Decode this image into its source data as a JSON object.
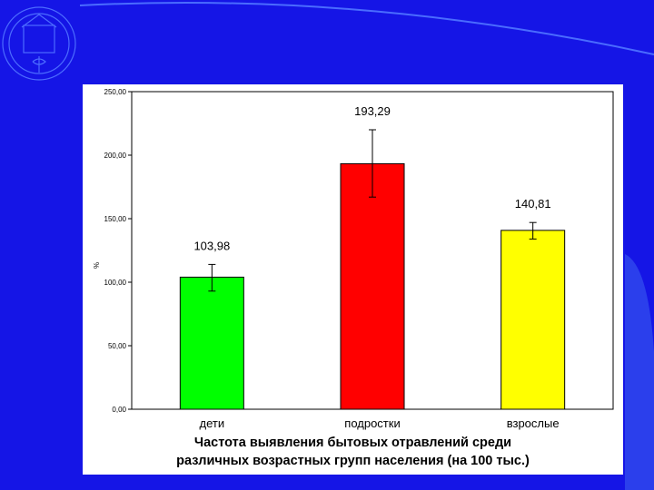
{
  "colors": {
    "slide_background": "#1515e6",
    "panel": "#ffffff",
    "grid": "#000000"
  },
  "logo": {
    "name": "university-emblem-watermark"
  },
  "chart_data": {
    "type": "bar",
    "title_lines": [
      "Частота выявления бытовых отравлений среди",
      "различных возрастных групп населения (на 100 тыс.)"
    ],
    "ylabel": "%",
    "ylim": [
      0,
      250
    ],
    "yticks": [
      0,
      50,
      100,
      150,
      200,
      250
    ],
    "ytick_labels": [
      "0,00",
      "50,00",
      "100,00",
      "150,00",
      "200,00",
      "250,00"
    ],
    "categories": [
      "дети",
      "подростки",
      "взрослые"
    ],
    "values": [
      103.98,
      193.29,
      140.81
    ],
    "value_labels": [
      "103,98",
      "193,29",
      "140,81"
    ],
    "error_low": [
      93,
      167,
      134
    ],
    "error_high": [
      114,
      220,
      147
    ],
    "bar_colors": [
      "#00ff00",
      "#ff0000",
      "#ffff00"
    ],
    "legend": "none",
    "grid": false
  }
}
